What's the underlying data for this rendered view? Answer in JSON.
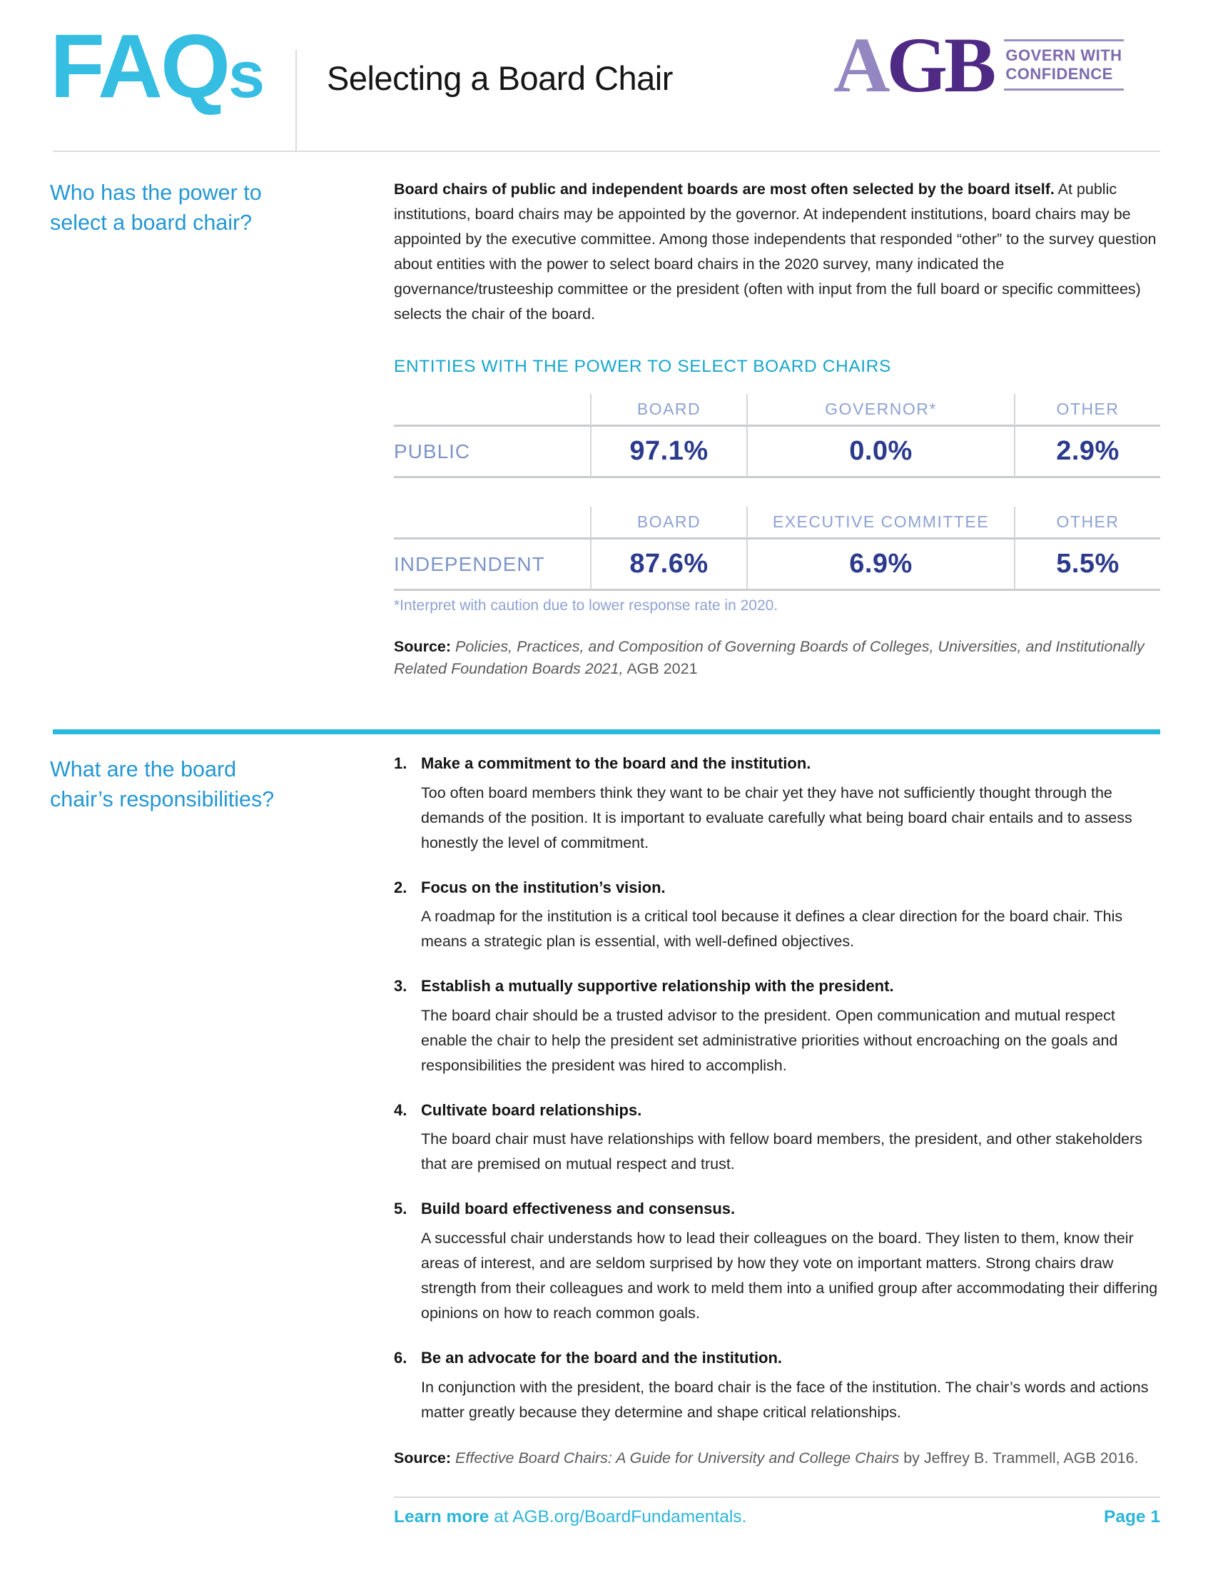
{
  "header": {
    "logo_big": "FAQ",
    "logo_small": "s",
    "title": "Selecting a Board Chair",
    "agb": {
      "letter_a": "A",
      "letters_gb": "GB",
      "tagline_line1": "GOVERN WITH",
      "tagline_line2": "CONFIDENCE"
    }
  },
  "section1": {
    "heading": "Who has the power to select a board chair?",
    "intro_bold": "Board chairs of public and independent boards are most often selected by the board itself.",
    "intro_rest": " At public institutions, board chairs may be appointed by the governor. At independent institutions, board chairs may be appointed by the executive committee. Among those independents that responded “other” to the survey question about entities with the power to select board chairs in the 2020 survey, many indicated the governance/trusteeship committee or the president (often with input from the full board or specific committees) selects the chair of the board.",
    "table_title": "ENTITIES WITH THE POWER TO SELECT BOARD CHAIRS",
    "footnote": "*Interpret with caution due to lower response rate in 2020.",
    "source_label": "Source:",
    "source_italic": " Policies, Practices, and Composition of Governing Boards of Colleges, Universities, and Institutionally Related Foundation Boards 2021,",
    "source_rest": " AGB 2021"
  },
  "tables": [
    {
      "row_label": "PUBLIC",
      "headers": [
        "BOARD",
        "GOVERNOR*",
        "OTHER"
      ],
      "values": [
        "97.1%",
        "0.0%",
        "2.9%"
      ]
    },
    {
      "row_label": "INDEPENDENT",
      "headers": [
        "BOARD",
        "EXECUTIVE COMMITTEE",
        "OTHER"
      ],
      "values": [
        "87.6%",
        "6.9%",
        "5.5%"
      ]
    }
  ],
  "section2": {
    "heading": "What are the board chair’s responsibilities?",
    "items": [
      {
        "num": "1.",
        "title": "Make a commitment to the board and the institution.",
        "body": "Too often board members think they want to be chair yet they have not sufficiently thought through the demands of the position. It is important to evaluate carefully what being board chair entails and to assess honestly the level of commitment."
      },
      {
        "num": "2.",
        "title": "Focus on the institution’s vision.",
        "body": "A roadmap for the institution is a critical tool because it defines a clear direction for the board chair. This means a strategic plan is essential, with well-defined objectives."
      },
      {
        "num": "3.",
        "title": "Establish a mutually supportive relationship with the president.",
        "body": "The board chair should be a trusted advisor to the president. Open communication and mutual respect enable the chair to help the president set administrative priorities without encroaching on the goals and responsibilities the president was hired to accomplish."
      },
      {
        "num": "4.",
        "title": "Cultivate board relationships.",
        "body": "The board chair must have relationships with fellow board members, the president, and other stakeholders that are premised on mutual respect and trust."
      },
      {
        "num": "5.",
        "title": "Build board effectiveness and consensus.",
        "body": "A successful chair understands how to lead their colleagues on the board. They listen to them, know their areas of interest, and are seldom surprised by how they vote on important matters. Strong chairs draw strength from their colleagues and work to meld them into a unified group after accommodating their differing opinions on how to reach common goals."
      },
      {
        "num": "6.",
        "title": "Be an advocate for the board and the institution.",
        "body": "In conjunction with the president, the board chair is the face of the institution. The chair’s words and actions matter greatly because they determine and shape critical relationships."
      }
    ],
    "source_label": "Source:",
    "source_italic": " Effective Board Chairs: A Guide for University and College Chairs",
    "source_rest": " by Jeffrey B. Trammell, AGB 2016."
  },
  "footer": {
    "learn_more_bold": "Learn more",
    "learn_more_rest": " at AGB.org/BoardFundamentals.",
    "page_number": "Page 1"
  },
  "colors": {
    "faqs_cyan": "#35BDE2",
    "question_blue": "#2397D4",
    "table_title_cyan": "#17A6CD",
    "table_header_periwinkle": "#8EA2D3",
    "table_row_label_blue": "#7D94C9",
    "table_value_navy": "#2B3A8C",
    "agb_purple_light": "#9486C0",
    "agb_purple_dark": "#4F2A85",
    "agb_tagline_purple": "#7C6BAD",
    "section_divider_cyan": "#27BADD",
    "footer_cyan": "#2CB5D9",
    "rule_gray": "#D9DBDC",
    "source_gray": "#59595C"
  }
}
